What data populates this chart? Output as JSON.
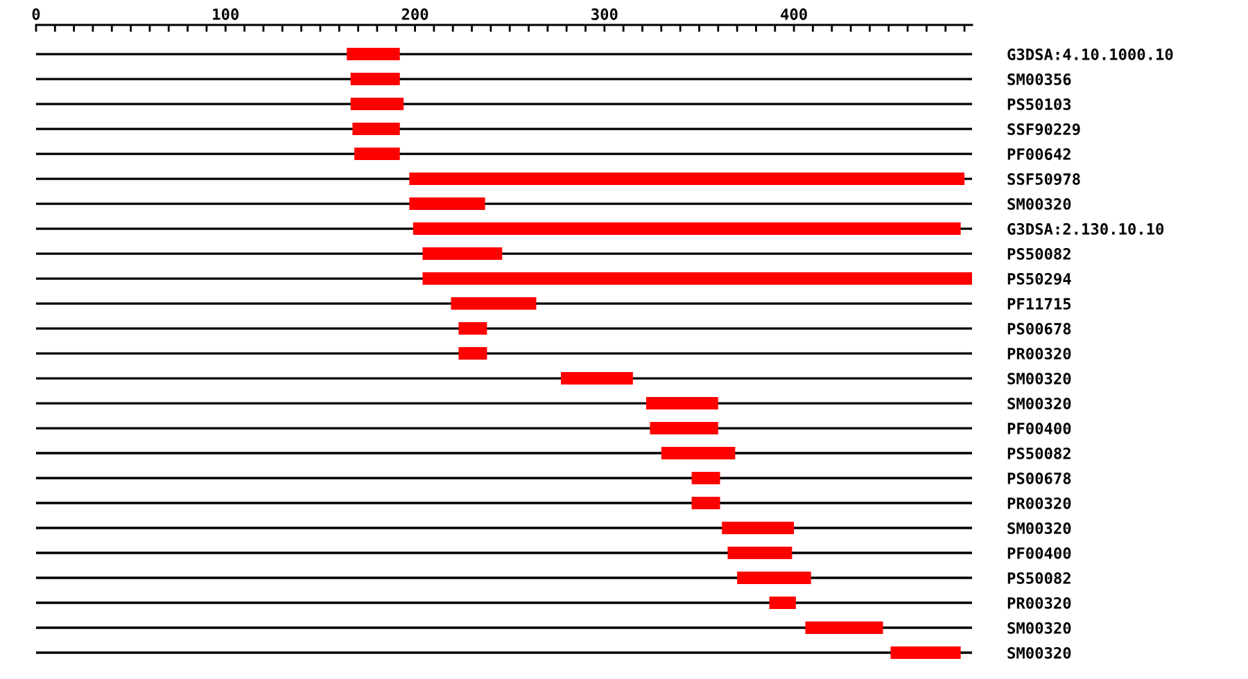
{
  "chart_data": {
    "type": "bar",
    "orientation": "horizontal",
    "categories": [
      "G3DSA:4.10.1000.10",
      "SM00356",
      "PS50103",
      "SSF90229",
      "PF00642",
      "SSF50978",
      "SM00320",
      "G3DSA:2.130.10.10",
      "PS50082",
      "PS50294",
      "PF11715",
      "PS00678",
      "PR00320",
      "SM00320",
      "SM00320",
      "PF00400",
      "PS50082",
      "PS00678",
      "PR00320",
      "SM00320",
      "PF00400",
      "PS50082",
      "PR00320",
      "SM00320",
      "SM00320"
    ],
    "base": [
      164,
      166,
      166,
      167,
      168,
      197,
      197,
      199,
      204,
      204,
      219,
      223,
      223,
      277,
      322,
      324,
      330,
      346,
      346,
      362,
      365,
      370,
      387,
      406,
      451
    ],
    "values": [
      28,
      26,
      28,
      25,
      24,
      293,
      40,
      289,
      42,
      290,
      45,
      15,
      15,
      38,
      38,
      36,
      39,
      15,
      15,
      38,
      34,
      39,
      14,
      41,
      37
    ],
    "color": "#ff0000",
    "xlim": [
      0,
      494
    ],
    "xticks": [
      0,
      {
        "value": 10,
        "label": null
      },
      {
        "value": 20,
        "label": null
      },
      {
        "value": 30,
        "label": null
      },
      {
        "value": 40,
        "label": null
      },
      {
        "value": 50,
        "label": null
      },
      {
        "value": 60,
        "label": null
      },
      {
        "value": 70,
        "label": null
      },
      {
        "value": 80,
        "label": null
      },
      {
        "value": 90,
        "label": null
      },
      100,
      {
        "value": 110,
        "label": null
      },
      {
        "value": 120,
        "label": null
      },
      {
        "value": 130,
        "label": null
      },
      {
        "value": 140,
        "label": null
      },
      {
        "value": 150,
        "label": null
      },
      {
        "value": 160,
        "label": null
      },
      {
        "value": 170,
        "label": null
      },
      {
        "value": 180,
        "label": null
      },
      {
        "value": 190,
        "label": null
      },
      200,
      {
        "value": 210,
        "label": null
      },
      {
        "value": 220,
        "label": null
      },
      {
        "value": 230,
        "label": null
      },
      {
        "value": 240,
        "label": null
      },
      {
        "value": 250,
        "label": null
      },
      {
        "value": 260,
        "label": null
      },
      {
        "value": 270,
        "label": null
      },
      {
        "value": 280,
        "label": null
      },
      {
        "value": 290,
        "label": null
      },
      300,
      {
        "value": 310,
        "label": null
      },
      {
        "value": 320,
        "label": null
      },
      {
        "value": 330,
        "label": null
      },
      {
        "value": 340,
        "label": null
      },
      {
        "value": 350,
        "label": null
      },
      {
        "value": 360,
        "label": null
      },
      {
        "value": 370,
        "label": null
      },
      {
        "value": 380,
        "label": null
      },
      {
        "value": 390,
        "label": null
      },
      400,
      {
        "value": 410,
        "label": null
      },
      {
        "value": 420,
        "label": null
      },
      {
        "value": 430,
        "label": null
      },
      {
        "value": 440,
        "label": null
      },
      {
        "value": 450,
        "label": null
      },
      {
        "value": 460,
        "label": null
      },
      {
        "value": 470,
        "label": null
      },
      {
        "value": 480,
        "label": null
      },
      {
        "value": 490,
        "label": null
      }
    ],
    "grid": "y"
  }
}
